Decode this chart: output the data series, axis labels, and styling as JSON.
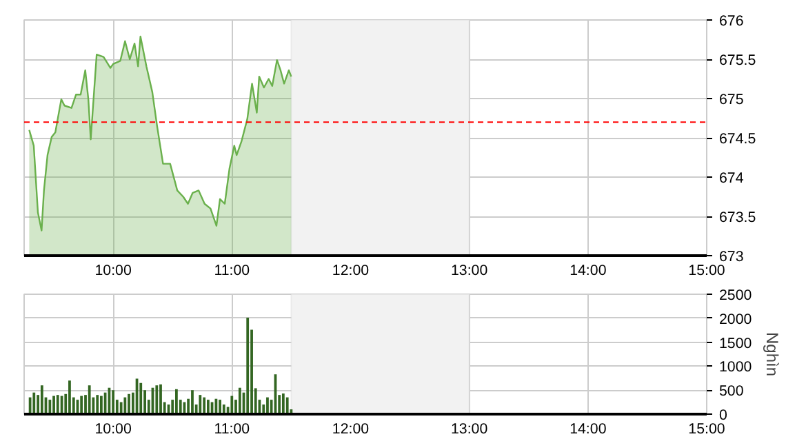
{
  "chart_data": [
    {
      "type": "area",
      "x": [
        9.293,
        9.331,
        9.366,
        9.397,
        9.417,
        9.447,
        9.482,
        9.513,
        9.533,
        9.563,
        9.59,
        9.649,
        9.687,
        9.726,
        9.765,
        9.791,
        9.811,
        9.861,
        9.919,
        9.977,
        10.0,
        10.06,
        10.1,
        10.14,
        10.18,
        10.21,
        10.23,
        10.28,
        10.33,
        10.37,
        10.42,
        10.48,
        10.54,
        10.59,
        10.63,
        10.67,
        10.72,
        10.77,
        10.82,
        10.87,
        10.9,
        10.94,
        10.98,
        11.02,
        11.04,
        11.08,
        11.13,
        11.17,
        11.21,
        11.23,
        11.27,
        11.31,
        11.34,
        11.38,
        11.41,
        11.44,
        11.48,
        11.5
      ],
      "series": [
        {
          "color": "#6ab04c",
          "values": [
            674.6,
            674.4,
            673.55,
            673.32,
            673.83,
            674.28,
            674.51,
            674.57,
            674.74,
            674.99,
            674.91,
            674.88,
            675.05,
            675.05,
            675.36,
            674.99,
            674.48,
            675.56,
            675.53,
            675.39,
            675.44,
            675.48,
            675.73,
            675.5,
            675.7,
            675.41,
            675.79,
            675.41,
            675.08,
            674.65,
            674.17,
            674.17,
            673.83,
            673.75,
            673.66,
            673.8,
            673.83,
            673.66,
            673.6,
            673.38,
            673.72,
            673.66,
            674.11,
            674.4,
            674.28,
            674.45,
            674.74,
            675.19,
            674.82,
            675.28,
            675.14,
            675.25,
            675.16,
            675.49,
            675.36,
            675.19,
            675.36,
            675.28
          ]
        }
      ],
      "xlim": [
        9.25,
        15
      ],
      "ylim": [
        673,
        676
      ],
      "xticks": [
        {
          "value": 10,
          "label": "10:00"
        },
        {
          "value": 11,
          "label": "11:00"
        },
        {
          "value": 12,
          "label": "12:00"
        },
        {
          "value": 13,
          "label": "13:00"
        },
        {
          "value": 14,
          "label": "14:00"
        },
        {
          "value": 15,
          "label": "15:00"
        }
      ],
      "yticks": [
        673,
        673.5,
        674,
        674.5,
        675,
        675.5,
        676
      ],
      "ref_lines": [
        {
          "axis": "y",
          "value": 674.7,
          "color": "#ff0000",
          "line_style": "dashed"
        }
      ],
      "bands": [
        {
          "axis": "x",
          "from": 11.5,
          "to": 13,
          "color": "#f2f2f2"
        }
      ],
      "grid": true
    },
    {
      "type": "bar",
      "ylabel": "Nghìn",
      "x": [
        9.3,
        9.333,
        9.367,
        9.4,
        9.433,
        9.467,
        9.5,
        9.533,
        9.567,
        9.6,
        9.633,
        9.667,
        9.7,
        9.733,
        9.767,
        9.8,
        9.833,
        9.867,
        9.9,
        9.933,
        9.967,
        10.0,
        10.033,
        10.067,
        10.1,
        10.133,
        10.167,
        10.2,
        10.233,
        10.267,
        10.3,
        10.333,
        10.367,
        10.4,
        10.433,
        10.467,
        10.5,
        10.533,
        10.567,
        10.6,
        10.633,
        10.667,
        10.7,
        10.733,
        10.767,
        10.8,
        10.833,
        10.867,
        10.9,
        10.933,
        10.967,
        11.0,
        11.033,
        11.067,
        11.1,
        11.133,
        11.167,
        11.2,
        11.233,
        11.267,
        11.3,
        11.333,
        11.367,
        11.4,
        11.433,
        11.467,
        11.5
      ],
      "series": [
        {
          "color": "#336622",
          "values": [
            350,
            450,
            400,
            600,
            350,
            300,
            380,
            400,
            380,
            420,
            700,
            350,
            300,
            380,
            400,
            600,
            350,
            400,
            380,
            450,
            550,
            500,
            300,
            250,
            350,
            420,
            450,
            740,
            650,
            500,
            300,
            550,
            600,
            620,
            250,
            200,
            300,
            520,
            300,
            250,
            320,
            500,
            200,
            400,
            350,
            300,
            250,
            320,
            300,
            200,
            150,
            380,
            300,
            550,
            450,
            2010,
            1760,
            540,
            300,
            200,
            350,
            300,
            830,
            400,
            430,
            350,
            100
          ]
        }
      ],
      "xlim": [
        9.25,
        15
      ],
      "ylim": [
        0,
        2500
      ],
      "xticks": [
        {
          "value": 10,
          "label": "10:00"
        },
        {
          "value": 11,
          "label": "11:00"
        },
        {
          "value": 12,
          "label": "12:00"
        },
        {
          "value": 13,
          "label": "13:00"
        },
        {
          "value": 14,
          "label": "14:00"
        },
        {
          "value": 15,
          "label": "15:00"
        }
      ],
      "yticks": [
        0,
        500,
        1000,
        1500,
        2000,
        2500
      ],
      "bands": [
        {
          "axis": "x",
          "from": 11.5,
          "to": 13,
          "color": "#f2f2f2"
        }
      ],
      "grid": true
    }
  ]
}
